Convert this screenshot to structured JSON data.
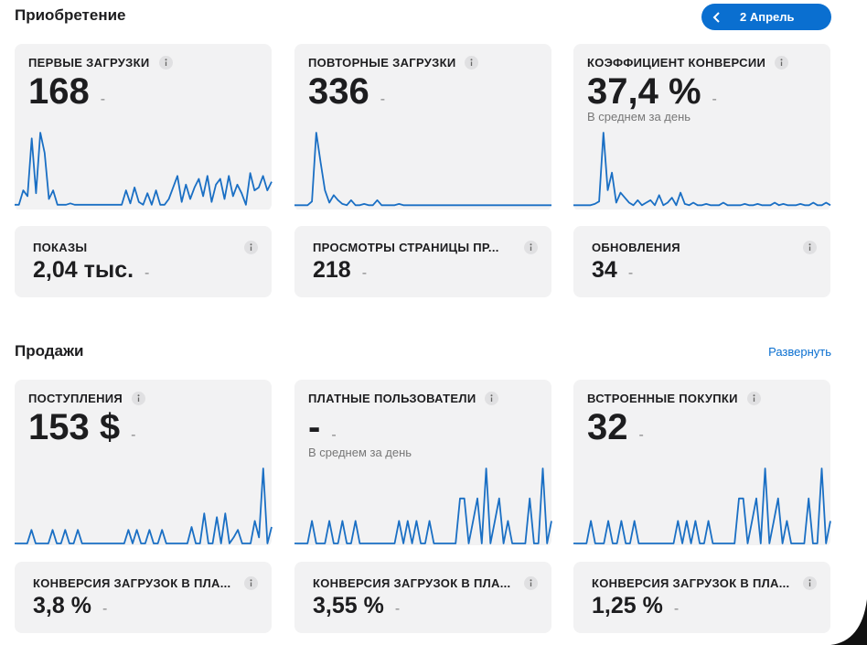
{
  "sections": [
    {
      "title": "Приобретение",
      "action": "2 Апрель",
      "cards": [
        {
          "label": "ПЕРВЫЕ ЗАГРУЗКИ",
          "value": "168",
          "change": "-",
          "sparkline": [
            2,
            2,
            12,
            8,
            48,
            10,
            52,
            38,
            6,
            12,
            2,
            2,
            2,
            3,
            2,
            2,
            2,
            2,
            2,
            2,
            2,
            2,
            2,
            2,
            2,
            2,
            12,
            3,
            14,
            4,
            2,
            10,
            2,
            12,
            2,
            2,
            6,
            14,
            22,
            4,
            16,
            6,
            14,
            20,
            8,
            22,
            4,
            16,
            20,
            6,
            22,
            8,
            16,
            10,
            2,
            24,
            12,
            14,
            22,
            12,
            18
          ]
        },
        {
          "label": "ПОВТОРНЫЕ ЗАГРУЗКИ",
          "value": "336",
          "change": "-",
          "sparkline": [
            2,
            2,
            2,
            2,
            5,
            60,
            36,
            14,
            4,
            10,
            6,
            3,
            2,
            6,
            2,
            2,
            3,
            2,
            2,
            6,
            2,
            2,
            2,
            2,
            3,
            2,
            2,
            2,
            2,
            2,
            2,
            2,
            2,
            2,
            2,
            2,
            2,
            2,
            2,
            2,
            2,
            2,
            2,
            2,
            2,
            2,
            2,
            2,
            2,
            2,
            2,
            2,
            2,
            2,
            2,
            2,
            2,
            2,
            2,
            2
          ]
        },
        {
          "label": "КОЭФФИЦИЕНТ КОНВЕРСИИ",
          "value": "37,4 %",
          "change": "-",
          "subtitle": "В среднем за день",
          "sparkline": [
            2,
            2,
            2,
            2,
            2,
            3,
            5,
            60,
            14,
            28,
            4,
            12,
            8,
            4,
            2,
            6,
            2,
            4,
            6,
            2,
            10,
            2,
            4,
            8,
            2,
            12,
            3,
            2,
            4,
            2,
            2,
            3,
            2,
            2,
            2,
            4,
            2,
            2,
            2,
            2,
            3,
            2,
            2,
            3,
            2,
            2,
            2,
            4,
            2,
            3,
            2,
            2,
            2,
            3,
            2,
            2,
            4,
            2,
            2,
            4,
            2
          ]
        }
      ],
      "small_cards": [
        {
          "label": "ПОКАЗЫ",
          "value": "2,04 тыс.",
          "change": "-"
        },
        {
          "label": "ПРОСМОТРЫ СТРАНИЦЫ ПР...",
          "value": "218",
          "change": "-"
        },
        {
          "label": "ОБНОВЛЕНИЯ",
          "value": "34",
          "change": "-"
        }
      ]
    },
    {
      "title": "Продажи",
      "action": "Развернуть",
      "cards": [
        {
          "label": "ПОСТУПЛЕНИЯ",
          "value": "153 $",
          "change": "-",
          "sparkline": [
            0,
            0,
            0,
            0,
            18,
            0,
            0,
            0,
            0,
            18,
            0,
            0,
            18,
            0,
            0,
            18,
            0,
            0,
            0,
            0,
            0,
            0,
            0,
            0,
            0,
            0,
            0,
            18,
            0,
            18,
            0,
            0,
            18,
            0,
            0,
            18,
            0,
            0,
            0,
            0,
            0,
            0,
            22,
            0,
            0,
            40,
            0,
            0,
            35,
            0,
            40,
            0,
            8,
            18,
            0,
            0,
            0,
            30,
            8,
            100,
            0,
            22
          ]
        },
        {
          "label": "ПЛАТНЫЕ ПОЛЬЗОВАТЕЛИ",
          "value": "-",
          "change": "-",
          "subtitle": "В среднем за день",
          "sparkline": [
            0,
            0,
            0,
            0,
            30,
            0,
            0,
            0,
            30,
            0,
            0,
            30,
            0,
            0,
            30,
            0,
            0,
            0,
            0,
            0,
            0,
            0,
            0,
            0,
            30,
            0,
            30,
            0,
            30,
            0,
            0,
            30,
            0,
            0,
            0,
            0,
            0,
            0,
            60,
            60,
            0,
            30,
            60,
            0,
            100,
            0,
            30,
            60,
            0,
            30,
            0,
            0,
            0,
            0,
            60,
            0,
            0,
            100,
            0,
            30
          ]
        },
        {
          "label": "ВСТРОЕННЫЕ ПОКУПКИ",
          "value": "32",
          "change": "-",
          "sparkline": [
            0,
            0,
            0,
            0,
            30,
            0,
            0,
            0,
            30,
            0,
            0,
            30,
            0,
            0,
            30,
            0,
            0,
            0,
            0,
            0,
            0,
            0,
            0,
            0,
            30,
            0,
            30,
            0,
            30,
            0,
            0,
            30,
            0,
            0,
            0,
            0,
            0,
            0,
            60,
            60,
            0,
            30,
            60,
            0,
            100,
            0,
            30,
            60,
            0,
            30,
            0,
            0,
            0,
            0,
            60,
            0,
            0,
            100,
            0,
            30
          ]
        }
      ],
      "small_cards": [
        {
          "label": "КОНВЕРСИЯ ЗАГРУЗОК В ПЛА...",
          "value": "3,8 %",
          "change": "-"
        },
        {
          "label": "КОНВЕРСИЯ ЗАГРУЗОК В ПЛА...",
          "value": "3,55 %",
          "change": "-"
        },
        {
          "label": "КОНВЕРСИЯ ЗАГРУЗОК В ПЛА...",
          "value": "1,25 %",
          "change": "-"
        }
      ]
    }
  ]
}
